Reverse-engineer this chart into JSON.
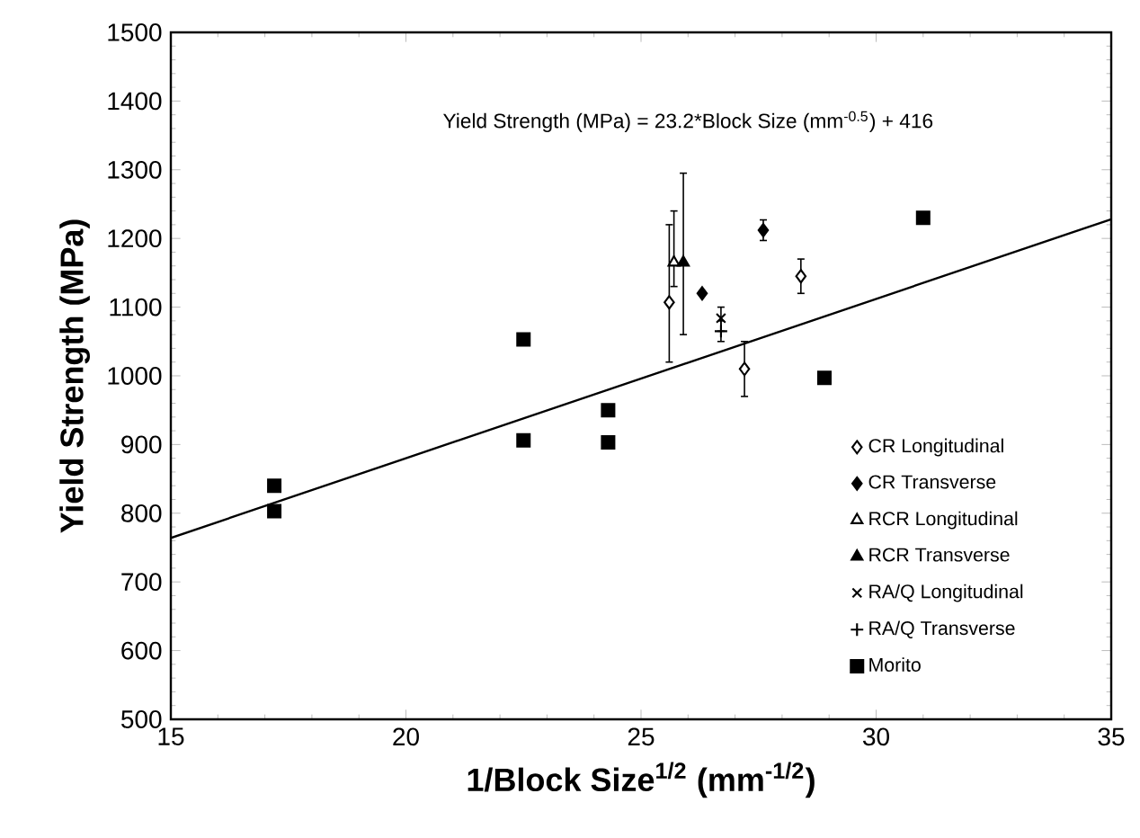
{
  "chart_data": {
    "type": "scatter",
    "xlabel": "1/Block Size$^{1/2}$ (mm$^{-1/2}$)",
    "ylabel": "Yield Strength (MPa)",
    "annotations": [
      "Yield Strength (MPa) = 23.2*Block Size (mm$^{-0.5}$) + 416"
    ],
    "xlim": [
      15,
      35
    ],
    "ylim": [
      500,
      1500
    ],
    "xticks": [
      15,
      20,
      25,
      30,
      35
    ],
    "yticks": [
      500,
      600,
      700,
      800,
      900,
      1000,
      1100,
      1200,
      1300,
      1400,
      1500
    ],
    "grid": false,
    "legend": "right",
    "series": [
      {
        "name": "CR Longitudinal",
        "color": "#ffffff",
        "marker": "diamond",
        "x": [
          25.6,
          27.2,
          28.4
        ],
        "values": [
          1107,
          1010,
          1145
        ],
        "errors": [
          [
            1020,
            1220
          ],
          [
            970,
            1050
          ],
          [
            1120,
            1170
          ]
        ]
      },
      {
        "name": "CR Transverse",
        "color": "#000000",
        "marker": "diamond",
        "x": [
          26.3,
          27.6
        ],
        "values": [
          1120,
          1212
        ],
        "errors": [
          null,
          [
            1197,
            1227
          ]
        ]
      },
      {
        "name": "RCR Longitudinal",
        "color": "#ffffff",
        "marker": "triangle",
        "x": [
          25.7
        ],
        "values": [
          1165
        ],
        "errors": [
          [
            1130,
            1240
          ]
        ]
      },
      {
        "name": "RCR Transverse",
        "color": "#000000",
        "marker": "triangle",
        "x": [
          25.9
        ],
        "values": [
          1165
        ],
        "errors": [
          [
            1060,
            1295
          ]
        ]
      },
      {
        "name": "RA/Q Longitudinal",
        "color": "#000000",
        "marker": "cross",
        "x": [
          26.7
        ],
        "values": [
          1084
        ],
        "errors": [
          [
            1065,
            1100
          ]
        ]
      },
      {
        "name": "RA/Q Transverse",
        "color": "#000000",
        "marker": "plus",
        "x": [
          26.7
        ],
        "values": [
          1065
        ],
        "errors": [
          [
            1050,
            1080
          ]
        ]
      },
      {
        "name": "Morito",
        "color": "#000000",
        "marker": "square",
        "x": [
          17.2,
          17.2,
          22.5,
          22.5,
          24.3,
          24.3,
          28.9,
          31.0
        ],
        "values": [
          840,
          803,
          1053,
          906,
          950,
          903,
          997,
          1230
        ]
      },
      {
        "type": "line",
        "color": "#000000",
        "marker": "none",
        "line_style": "solid",
        "x": [
          15,
          35
        ],
        "values": [
          764,
          1228
        ]
      }
    ]
  }
}
